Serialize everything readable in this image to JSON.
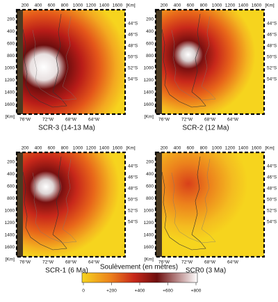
{
  "figure": {
    "axes": {
      "top": [
        "200",
        "400",
        "600",
        "800",
        "1000",
        "1200",
        "1400",
        "1600",
        "[Km]"
      ],
      "left": [
        "200",
        "400",
        "600",
        "800",
        "1000",
        "1200",
        "1400",
        "1600",
        "[Km]"
      ],
      "right": [
        "44°S",
        "46°S",
        "48°S",
        "50°S",
        "52°S",
        "54°S"
      ],
      "bottom": [
        "76°W",
        "72°W",
        "68°W",
        "64°W"
      ]
    },
    "panels": [
      {
        "caption": "SCR-3 (14-13 Ma)"
      },
      {
        "caption": "SCR-2 (12 Ma)"
      },
      {
        "caption": "SCR-1 (6 Ma)"
      },
      {
        "caption": "SCR0 (3 Ma)"
      }
    ],
    "colorbar": {
      "title": "Soulèvement (en mètres)",
      "ticks": [
        "0",
        "+200",
        "+400",
        "+600",
        "+800"
      ]
    }
  }
}
